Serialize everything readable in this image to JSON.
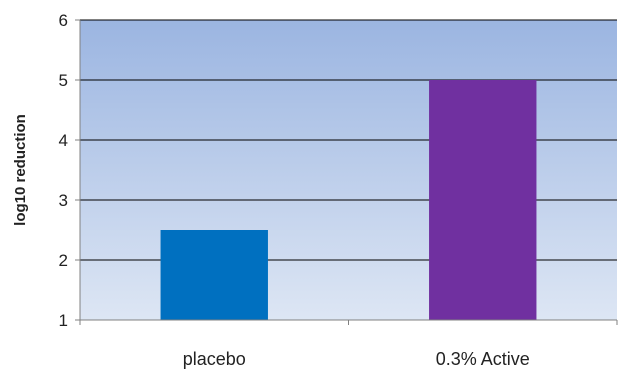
{
  "chart_data": {
    "type": "bar",
    "categories": [
      "placebo",
      "0.3% Active"
    ],
    "values": [
      2.5,
      5.0
    ],
    "title": "",
    "xlabel": "",
    "ylabel": "log10 reduction",
    "ylim": [
      1,
      6
    ],
    "yticks": [
      1,
      2,
      3,
      4,
      5,
      6
    ],
    "grid": true,
    "legend": "none",
    "colors": [
      "#0070c0",
      "#7030a0"
    ],
    "background_gradient": [
      "#9bb5e1",
      "#dde6f4"
    ]
  }
}
